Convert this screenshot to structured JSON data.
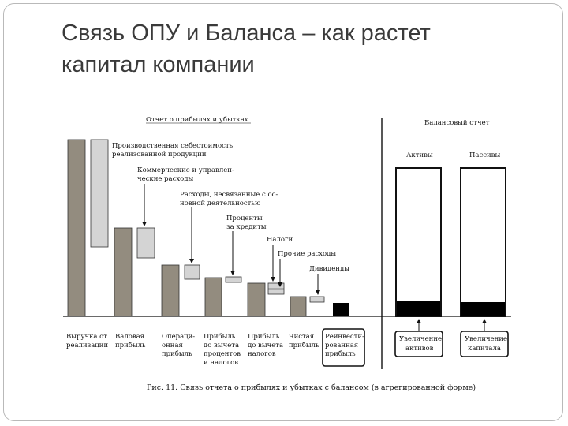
{
  "slide": {
    "title_line1": "Связь ОПУ и Баланса – как растет",
    "title_line2": "капитал компании"
  },
  "diagram": {
    "left_header": "Отчет о прибылях и убытках",
    "right_header": "Балансовый отчет",
    "assets_label": "Активы",
    "liabilities_label": "Пассивы",
    "annotations": {
      "cogs": [
        "Производственная себестоимость",
        "реализованной продукции"
      ],
      "sga": [
        "Коммерческие и управлен-",
        "ческие расходы"
      ],
      "nonop": [
        "Расходы, несвязанные с ос-",
        "новной деятельностью"
      ],
      "interest": [
        "Проценты",
        "за кредиты"
      ],
      "taxes": [
        "Налоги"
      ],
      "other": [
        "Прочие расходы"
      ],
      "dividends": [
        "Дивиденды"
      ]
    },
    "bottom_labels": {
      "revenue": [
        "Выручка от",
        "реализации"
      ],
      "gross": [
        "Валовая",
        "прибыль"
      ],
      "operating": [
        "Операци-",
        "онная",
        "прибыль"
      ],
      "ebit": [
        "Прибыль",
        "до вычета",
        "процентов",
        "и налогов"
      ],
      "ebt": [
        "Прибыль",
        "до вычета",
        "налогов"
      ],
      "net": [
        "Чистая",
        "прибыль"
      ],
      "retained": [
        "Реинвести-",
        "рованная",
        "прибыль"
      ],
      "assets_increase": [
        "Увеличение",
        "активов"
      ],
      "capital_increase": [
        "Увеличение",
        "капитала"
      ]
    },
    "caption": "Рис. 11. Связь отчета о прибылях и убытках с балансом (в агрегированной форме)"
  }
}
